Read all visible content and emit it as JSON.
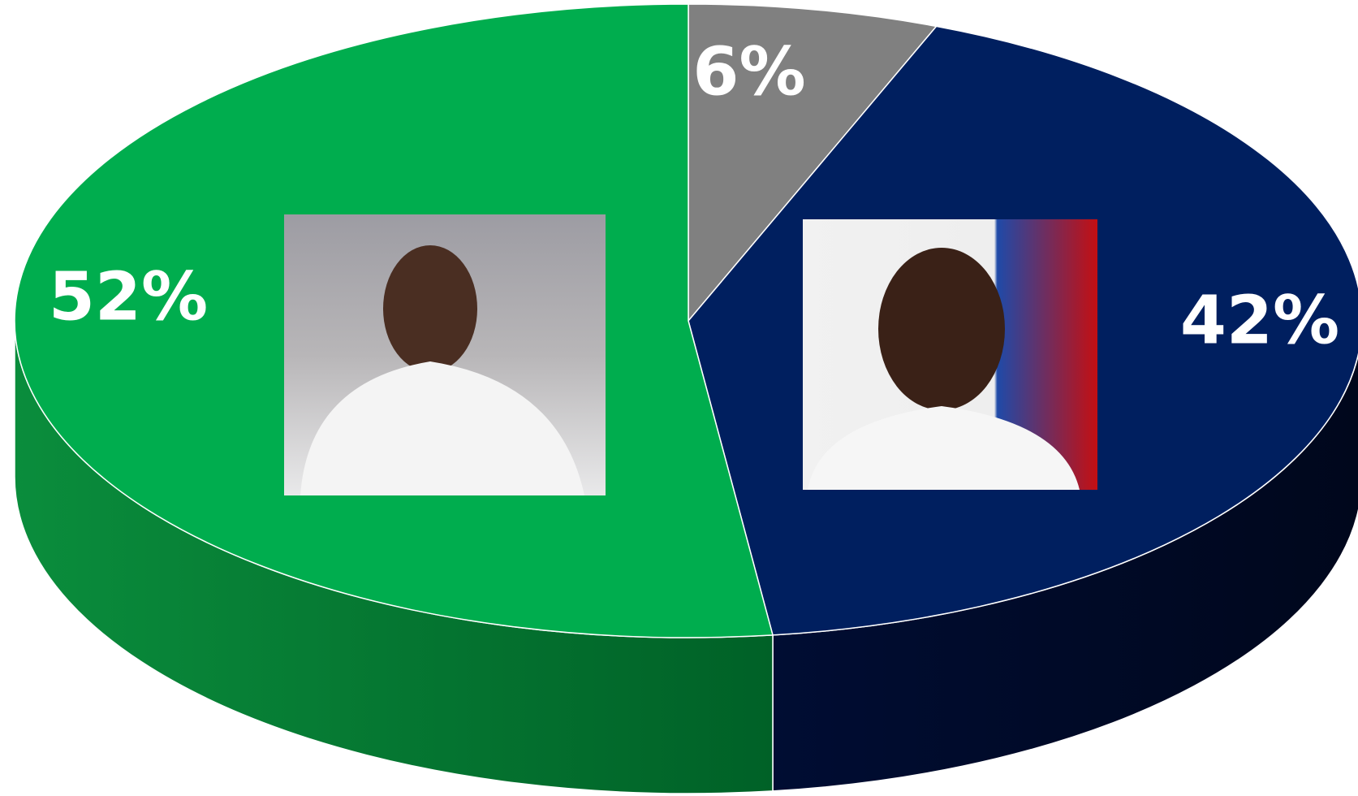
{
  "chart_data": {
    "type": "pie3d",
    "values": [
      6,
      42,
      52
    ],
    "value_labels": [
      "6%",
      "42%",
      "52%"
    ],
    "colors": [
      "#808080",
      "#001f5f",
      "#00ad4e"
    ],
    "side_colors": [
      [
        "#6a6a6a",
        "#505050"
      ],
      [
        "#000d33",
        "#00071c"
      ],
      [
        "#0a8d3c",
        "#006127"
      ]
    ]
  }
}
